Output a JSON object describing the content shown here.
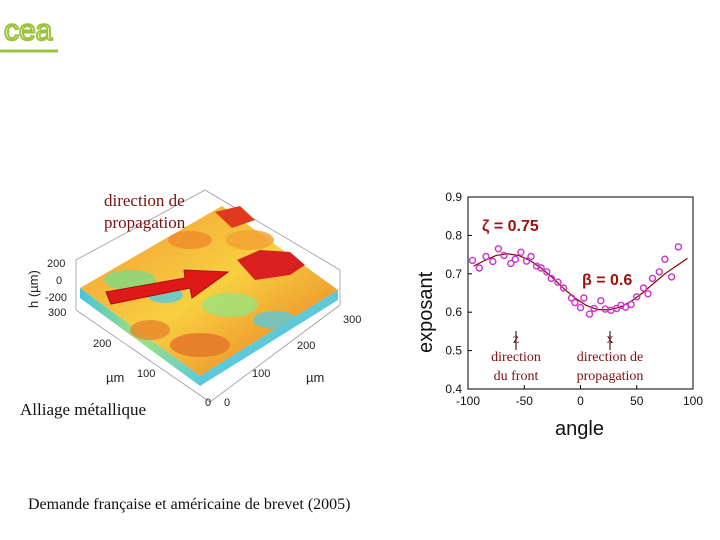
{
  "logo": {
    "text": "cea",
    "color": "#9ac23c"
  },
  "surface_figure": {
    "direction_label_line1": "direction de",
    "direction_label_line2": "propagation",
    "z_axis_label": "h (µm)",
    "z_ticks": [
      "200",
      "0",
      "-200"
    ],
    "left_axis_ticks": [
      "300",
      "200",
      "100",
      "0"
    ],
    "right_axis_ticks": [
      "300",
      "200",
      "100",
      "0"
    ],
    "left_axis_label": "µm",
    "right_axis_label": "µm",
    "caption": "Alliage métallique",
    "arrow_color": "#e01818"
  },
  "footer": {
    "patent_text": "Demande française et américaine de brevet (2005)"
  },
  "chart_data": {
    "type": "scatter",
    "xlabel": "angle",
    "ylabel": "exposant",
    "xlim": [
      -100,
      100
    ],
    "ylim": [
      0.4,
      0.9
    ],
    "x_ticks": [
      "-100",
      "-50",
      "0",
      "50",
      "100"
    ],
    "y_ticks": [
      "0.4",
      "0.5",
      "0.6",
      "0.7",
      "0.8",
      "0.9"
    ],
    "grid": false,
    "marker_color": "#cc33cc",
    "fit_color": "#8b0000",
    "series": [
      {
        "x": [
          -96,
          -90,
          -84,
          -78,
          -73,
          -68,
          -62,
          -58,
          -53,
          -48,
          -44,
          -39,
          -35,
          -30,
          -26,
          -20,
          -15,
          -8,
          -5,
          0,
          3,
          8,
          12,
          18,
          22,
          27,
          32,
          36,
          40,
          45,
          50,
          56,
          60,
          64,
          70,
          75,
          81,
          87
        ],
        "y": [
          0.735,
          0.715,
          0.745,
          0.732,
          0.765,
          0.748,
          0.727,
          0.738,
          0.756,
          0.733,
          0.745,
          0.72,
          0.715,
          0.705,
          0.688,
          0.678,
          0.663,
          0.637,
          0.625,
          0.612,
          0.637,
          0.595,
          0.61,
          0.63,
          0.608,
          0.605,
          0.61,
          0.618,
          0.613,
          0.62,
          0.64,
          0.663,
          0.648,
          0.688,
          0.705,
          0.738,
          0.692,
          0.77
        ]
      }
    ],
    "fit": {
      "x": [
        -95,
        -85,
        -75,
        -65,
        -55,
        -45,
        -35,
        -25,
        -15,
        -5,
        5,
        15,
        25,
        35,
        45,
        55,
        65,
        75,
        85,
        95
      ],
      "y": [
        0.72,
        0.735,
        0.748,
        0.752,
        0.748,
        0.735,
        0.715,
        0.69,
        0.662,
        0.637,
        0.618,
        0.607,
        0.606,
        0.613,
        0.628,
        0.65,
        0.675,
        0.7,
        0.72,
        0.74
      ]
    },
    "annotations": {
      "zeta": "ζ = 0.75",
      "beta": "β = 0.6",
      "z_letter": "z",
      "z_line1": "direction",
      "z_line2": "du front",
      "x_letter": "x",
      "x_line1": "direction de",
      "x_line2": "propagation"
    }
  }
}
